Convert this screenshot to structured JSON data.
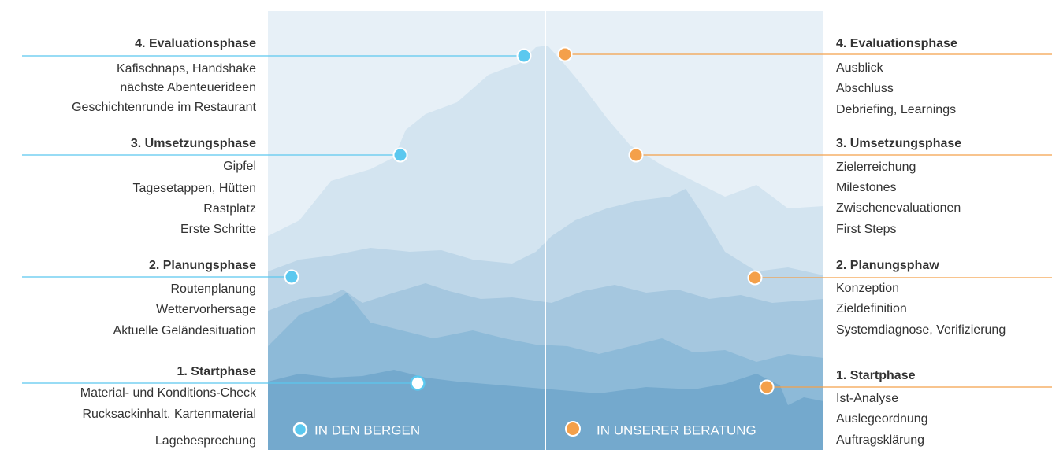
{
  "left": {
    "phases": [
      {
        "title": "4. Evaluationsphase",
        "items": [
          "Kafischnaps, Handshake",
          "nächste Abenteuerideen",
          "Geschichtenrunde im Restaurant"
        ]
      },
      {
        "title": "3. Umsetzungsphase",
        "items": [
          "Gipfel",
          "Tagesetappen, Hütten",
          "Rastplatz",
          "Erste Schritte"
        ]
      },
      {
        "title": "2. Planungsphase",
        "items": [
          "Routenplanung",
          "Wettervorhersage",
          "Aktuelle Geländesituation"
        ]
      },
      {
        "title": "1. Startphase",
        "items": [
          "Material- und Konditions-Check",
          "Rucksackinhalt, Kartenmaterial",
          "Lagebesprechung"
        ]
      }
    ]
  },
  "right": {
    "phases": [
      {
        "title": "4. Evaluationsphase",
        "items": [
          "Ausblick",
          "Abschluss",
          "Debriefing, Learnings"
        ]
      },
      {
        "title": "3. Umsetzungsphase",
        "items": [
          "Zielerreichung",
          "Milestones",
          "Zwischenevaluationen",
          "First Steps"
        ]
      },
      {
        "title": "2. Planungsphaw",
        "items": [
          "Konzeption",
          "Zieldefinition",
          "Systemdiagnose, Verifizierung"
        ]
      },
      {
        "title": "1. Startphase",
        "items": [
          "Ist-Analyse",
          "Auslegeordnung",
          "Auftragsklärung"
        ]
      }
    ]
  },
  "legend": {
    "left": "IN DEN BERGEN",
    "right": "IN UNSERER BERATUNG"
  }
}
